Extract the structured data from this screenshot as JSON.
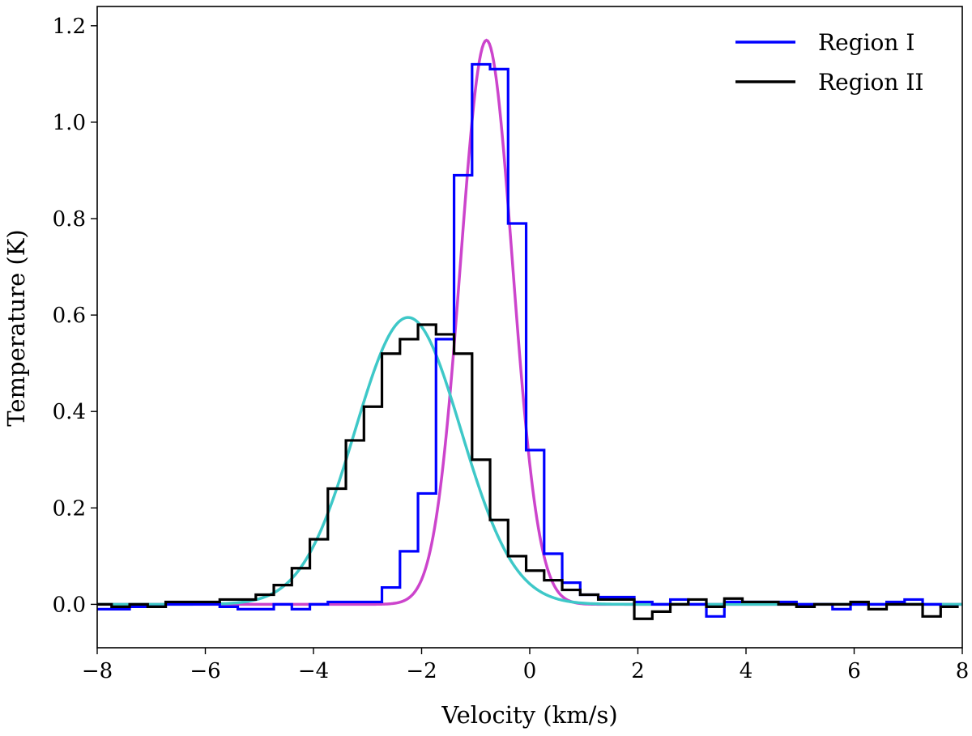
{
  "chart_data": {
    "type": "line",
    "title": "",
    "xlabel": "Velocity (km/s)",
    "ylabel": "Temperature (K)",
    "xlim": [
      -8,
      8
    ],
    "ylim": [
      -0.09,
      1.24
    ],
    "xticks": [
      -8,
      -6,
      -4,
      -2,
      0,
      2,
      4,
      6,
      8
    ],
    "xtick_labels": [
      "−8",
      "−6",
      "−4",
      "−2",
      "0",
      "2",
      "4",
      "6",
      "8"
    ],
    "yticks": [
      0.0,
      0.2,
      0.4,
      0.6,
      0.8,
      1.0,
      1.2
    ],
    "ytick_labels": [
      "0.0",
      "0.2",
      "0.4",
      "0.6",
      "0.8",
      "1.0",
      "1.2"
    ],
    "grid": false,
    "legend_position": "top-right",
    "bin_width": 0.333,
    "series": [
      {
        "name": "Region I",
        "style": "steps",
        "color": "#0000ff",
        "x": [
          -7.9,
          -7.567,
          -7.233,
          -6.9,
          -6.567,
          -6.233,
          -5.9,
          -5.567,
          -5.233,
          -4.9,
          -4.567,
          -4.233,
          -3.9,
          -3.567,
          -3.233,
          -2.9,
          -2.567,
          -2.233,
          -1.9,
          -1.567,
          -1.233,
          -0.9,
          -0.567,
          -0.233,
          0.1,
          0.433,
          0.767,
          1.1,
          1.433,
          1.767,
          2.1,
          2.433,
          2.767,
          3.1,
          3.433,
          3.767,
          4.1,
          4.433,
          4.767,
          5.1,
          5.433,
          5.767,
          6.1,
          6.433,
          6.767,
          7.1,
          7.433,
          7.767
        ],
        "values": [
          -0.01,
          -0.01,
          -0.005,
          -0.005,
          0.0,
          0.0,
          0.0,
          -0.005,
          -0.01,
          -0.01,
          0.0,
          -0.01,
          0.0,
          0.005,
          0.005,
          0.005,
          0.035,
          0.11,
          0.23,
          0.55,
          0.89,
          1.12,
          1.11,
          0.79,
          0.32,
          0.105,
          0.045,
          0.02,
          0.015,
          0.015,
          0.005,
          0.0,
          0.01,
          0.0,
          -0.025,
          0.005,
          0.005,
          0.005,
          0.005,
          0.0,
          0.0,
          -0.01,
          0.0,
          0.0,
          0.005,
          0.01,
          0.0,
          -0.005
        ]
      },
      {
        "name": "Region II",
        "style": "steps",
        "color": "#000000",
        "x": [
          -7.9,
          -7.567,
          -7.233,
          -6.9,
          -6.567,
          -6.233,
          -5.9,
          -5.567,
          -5.233,
          -4.9,
          -4.567,
          -4.233,
          -3.9,
          -3.567,
          -3.233,
          -2.9,
          -2.567,
          -2.233,
          -1.9,
          -1.567,
          -1.233,
          -0.9,
          -0.567,
          -0.233,
          0.1,
          0.433,
          0.767,
          1.1,
          1.433,
          1.767,
          2.1,
          2.433,
          2.767,
          3.1,
          3.433,
          3.767,
          4.1,
          4.433,
          4.767,
          5.1,
          5.433,
          5.767,
          6.1,
          6.433,
          6.767,
          7.1,
          7.433,
          7.767
        ],
        "values": [
          0.0,
          -0.005,
          0.0,
          -0.005,
          0.005,
          0.005,
          0.005,
          0.01,
          0.01,
          0.02,
          0.04,
          0.075,
          0.135,
          0.24,
          0.34,
          0.41,
          0.52,
          0.55,
          0.58,
          0.56,
          0.52,
          0.3,
          0.175,
          0.1,
          0.07,
          0.05,
          0.03,
          0.02,
          0.01,
          0.01,
          -0.03,
          -0.015,
          0.0,
          0.01,
          -0.005,
          0.012,
          0.005,
          0.005,
          0.0,
          -0.005,
          0.0,
          0.0,
          0.005,
          -0.01,
          0.0,
          0.0,
          -0.025,
          -0.005
        ]
      },
      {
        "name": "Region I fit",
        "style": "gaussian",
        "color": "#cc44cc",
        "amplitude": 1.17,
        "center": -0.8,
        "sigma": 0.48,
        "x_range": [
          -8,
          8
        ]
      },
      {
        "name": "Region II fit",
        "style": "gaussian",
        "color": "#3ec8c8",
        "amplitude": 0.595,
        "center": -2.25,
        "sigma": 0.98,
        "x_range": [
          -8,
          8
        ]
      }
    ],
    "legend": [
      "Region I",
      "Region II"
    ]
  }
}
